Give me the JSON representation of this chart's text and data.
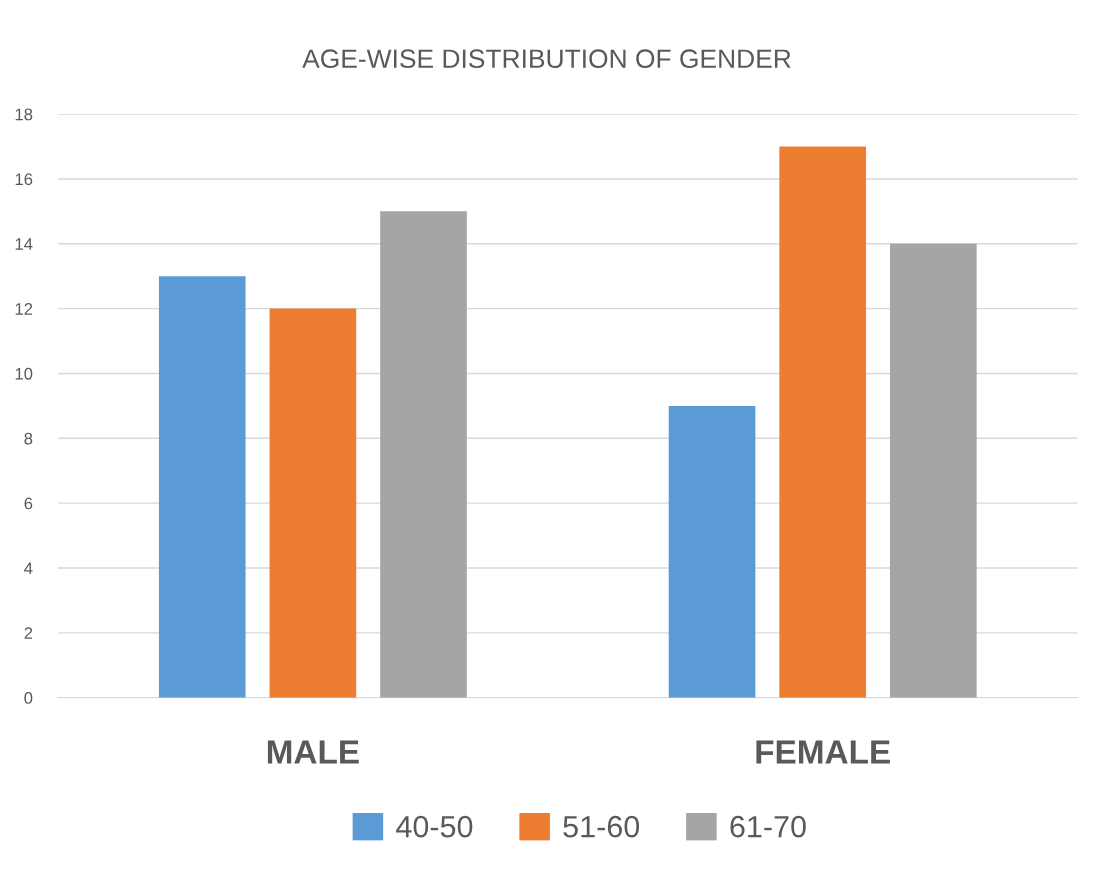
{
  "chart_data": {
    "type": "bar",
    "title": "AGE-WISE DISTRIBUTION OF GENDER",
    "categories": [
      "MALE",
      "FEMALE"
    ],
    "series": [
      {
        "name": "40-50",
        "color": "#5b9bd5",
        "values": [
          13,
          9
        ]
      },
      {
        "name": "51-60",
        "color": "#ed7d31",
        "values": [
          12,
          17
        ]
      },
      {
        "name": "61-70",
        "color": "#a5a5a5",
        "values": [
          15,
          14
        ]
      }
    ],
    "ylim": [
      0,
      18
    ],
    "yticks": [
      0,
      2,
      4,
      6,
      8,
      10,
      12,
      14,
      16,
      18
    ],
    "grid": "y",
    "legend": "bottom"
  }
}
